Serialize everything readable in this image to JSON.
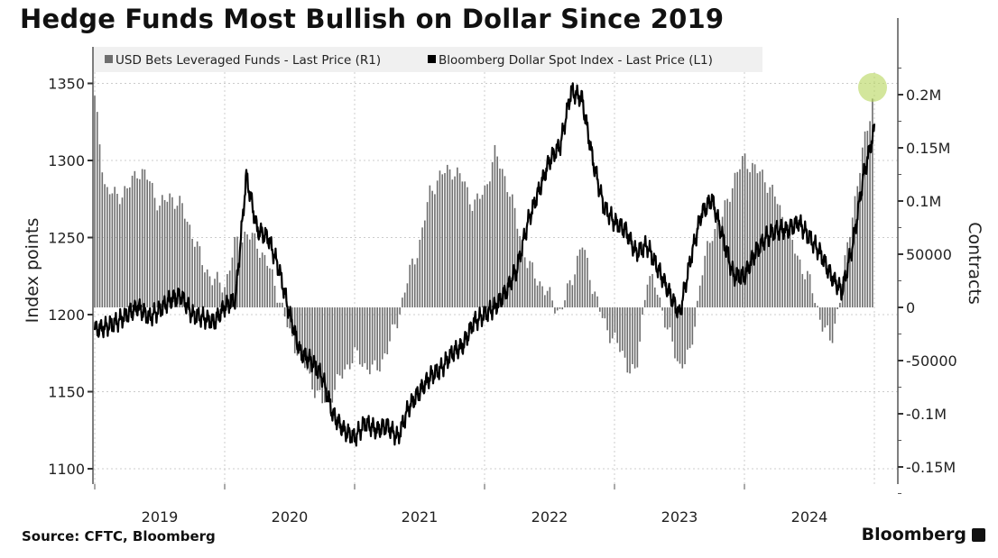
{
  "title": "Hedge Funds Most Bullish on Dollar Since 2019",
  "source": "Source: CFTC, Bloomberg",
  "brand": "Bloomberg",
  "chart_data": {
    "type": "bar+line",
    "title": "Hedge Funds Most Bullish on Dollar Since 2019",
    "x_start": "2019-01",
    "x_frequency": "monthly",
    "x_tick_labels": [
      "2019",
      "2020",
      "2021",
      "2022",
      "2023",
      "2024"
    ],
    "left_axis": {
      "label": "Index points",
      "ticks": [
        "1100",
        "1150",
        "1200",
        "1250",
        "1300",
        "1350"
      ],
      "range": [
        1090,
        1365
      ]
    },
    "right_axis": {
      "label": "Contracts",
      "ticks": [
        "-0.15M",
        "-0.1M",
        "-50000",
        "0",
        "50000",
        "0.1M",
        "0.15M",
        "0.2M"
      ],
      "range": [
        -168000,
        226000
      ]
    },
    "grid": true,
    "legend": {
      "placement": "top",
      "entries": [
        "USD Bets Leveraged Funds - Last Price (R1)",
        "Bloomberg Dollar Spot Index - Last Price (L1)"
      ]
    },
    "series": [
      {
        "name": "USD Bets Leveraged Funds - Last Price (R1)",
        "type": "bar",
        "axis": "right",
        "color": "#6e6e6e",
        "values": [
          195000,
          110000,
          105000,
          110000,
          130000,
          120000,
          95000,
          105000,
          95000,
          70000,
          40000,
          25000,
          20000,
          60000,
          70000,
          60000,
          40000,
          10000,
          -25000,
          -45000,
          -70000,
          -90000,
          -80000,
          -60000,
          -45000,
          -55000,
          -60000,
          -40000,
          -10000,
          30000,
          60000,
          110000,
          125000,
          130000,
          120000,
          95000,
          110000,
          145000,
          120000,
          80000,
          40000,
          25000,
          10000,
          -5000,
          25000,
          60000,
          20000,
          -15000,
          -30000,
          -50000,
          -65000,
          30000,
          15000,
          -25000,
          -55000,
          -45000,
          30000,
          70000,
          85000,
          120000,
          140000,
          130000,
          120000,
          100000,
          70000,
          45000,
          25000,
          -10000,
          -35000,
          20000,
          90000,
          150000,
          205000
        ]
      },
      {
        "name": "Bloomberg Dollar Spot Index - Last Price (L1)",
        "type": "line",
        "axis": "left",
        "color": "#000000",
        "values": [
          1190,
          1192,
          1195,
          1200,
          1205,
          1198,
          1203,
          1210,
          1212,
          1200,
          1198,
          1195,
          1205,
          1210,
          1290,
          1255,
          1250,
          1230,
          1200,
          1175,
          1170,
          1160,
          1135,
          1125,
          1120,
          1130,
          1125,
          1128,
          1120,
          1140,
          1150,
          1160,
          1165,
          1175,
          1180,
          1195,
          1200,
          1205,
          1215,
          1230,
          1260,
          1280,
          1300,
          1310,
          1345,
          1340,
          1300,
          1270,
          1260,
          1255,
          1240,
          1245,
          1230,
          1215,
          1200,
          1235,
          1265,
          1275,
          1250,
          1225,
          1225,
          1240,
          1250,
          1255,
          1255,
          1260,
          1250,
          1240,
          1225,
          1215,
          1245,
          1290,
          1320
        ]
      }
    ],
    "annotations": [
      {
        "type": "highlight-circle",
        "target": "latest bar",
        "color": "#b5d65a"
      }
    ]
  }
}
